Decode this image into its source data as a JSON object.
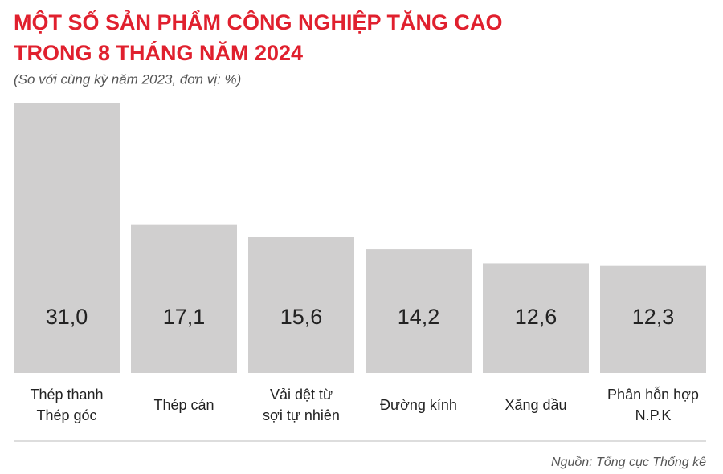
{
  "chart_data": {
    "type": "bar",
    "title": [
      "MỘT SỐ SẢN PHẨM CÔNG NGHIỆP TĂNG CAO",
      "TRONG 8 THÁNG NĂM 2024"
    ],
    "subtitle": "(So với cùng kỳ năm 2023, đơn vị: %)",
    "categories": [
      [
        "Thép thanh",
        "Thép góc"
      ],
      [
        "Thép cán"
      ],
      [
        "Vải dệt từ",
        "sợi tự nhiên"
      ],
      [
        "Đường kính"
      ],
      [
        "Xăng dầu"
      ],
      [
        "Phân hỗn hợp",
        "N.P.K"
      ]
    ],
    "values": [
      31.0,
      17.1,
      15.6,
      14.2,
      12.6,
      12.3
    ],
    "value_labels": [
      "31,0",
      "17,1",
      "15,6",
      "14,2",
      "12,6",
      "12,3"
    ],
    "color": "#d0cfcf",
    "source": "Nguồn: Tổng cục Thống kê"
  }
}
